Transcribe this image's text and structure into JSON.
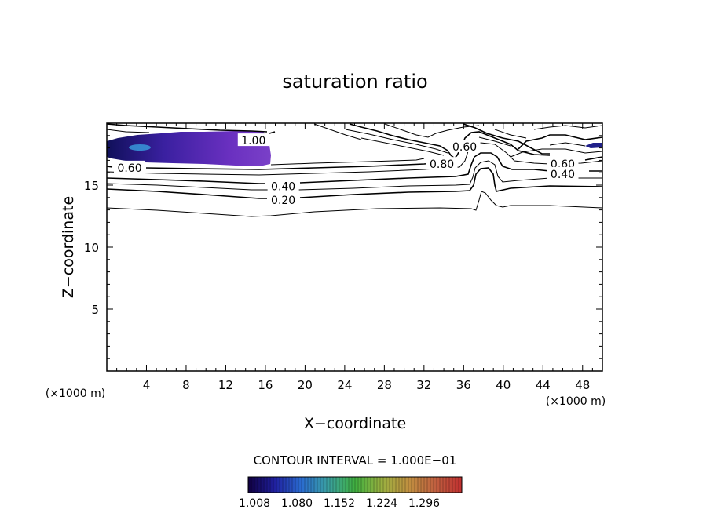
{
  "chart_data": {
    "type": "contour",
    "title": "saturation ratio",
    "xlabel": "X−coordinate",
    "ylabel": "Z−coordinate",
    "x_unit_left": "(×1000 m)",
    "x_unit_right": "(×1000 m)",
    "xlim": [
      0,
      50
    ],
    "ylim": [
      0,
      20
    ],
    "x_ticks": [
      4,
      8,
      12,
      16,
      20,
      24,
      28,
      32,
      36,
      40,
      44,
      48
    ],
    "y_ticks": [
      5,
      10,
      15
    ],
    "contour_interval_label": "CONTOUR INTERVAL = 1.000E−01",
    "contour_labels": [
      {
        "text": "1.00",
        "x": 14.8,
        "z": 18.6
      },
      {
        "text": "0.60",
        "x": 2.3,
        "z": 16.4
      },
      {
        "text": "0.40",
        "x": 17.8,
        "z": 14.9
      },
      {
        "text": "0.20",
        "x": 17.8,
        "z": 13.8
      },
      {
        "text": "0.80",
        "x": 33.8,
        "z": 16.7
      },
      {
        "text": "0.60",
        "x": 36.1,
        "z": 18.1
      },
      {
        "text": "0.60",
        "x": 46.0,
        "z": 16.7
      },
      {
        "text": "0.40",
        "x": 46.0,
        "z": 15.9
      }
    ],
    "colorbar": {
      "ticks": [
        "1.008",
        "1.080",
        "1.152",
        "1.224",
        "1.296"
      ],
      "colors": [
        "#100040",
        "#2020a0",
        "#2a6cd0",
        "#3aa0a0",
        "#40b040",
        "#9ab040",
        "#c09040",
        "#c06040",
        "#c03030"
      ]
    },
    "fill_region_color": "#5a2ab0"
  }
}
